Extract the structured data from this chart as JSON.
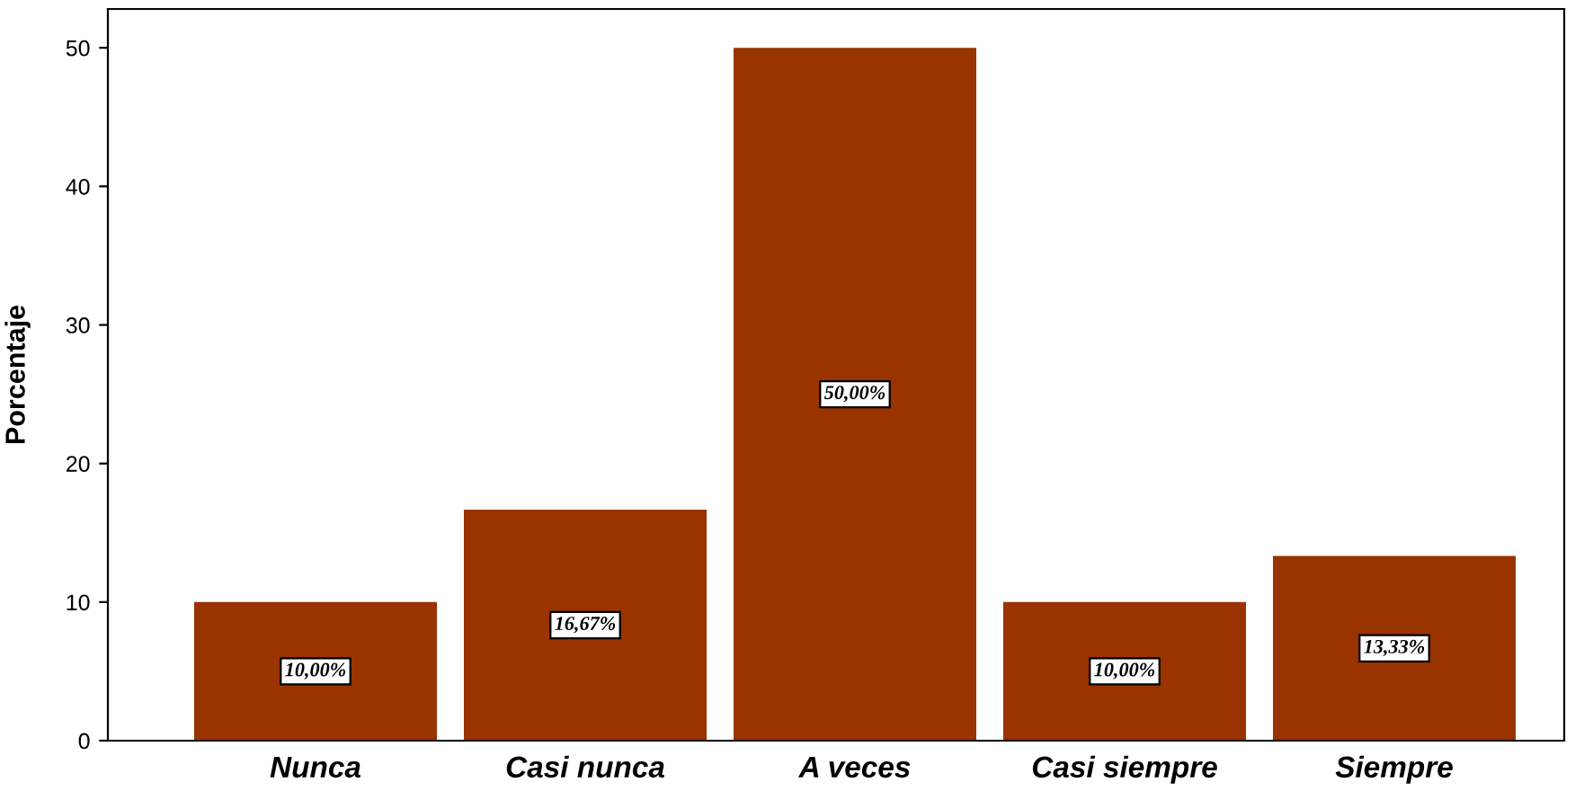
{
  "chart_data": {
    "type": "bar",
    "ylabel": "Porcentaje",
    "categories": [
      "Nunca",
      "Casi nunca",
      "A veces",
      "Casi siempre",
      "Siempre"
    ],
    "values": [
      10,
      16.67,
      50,
      10,
      13.33
    ],
    "value_labels": [
      "10,00%",
      "16,67%",
      "50,00%",
      "10,00%",
      "13,33%"
    ],
    "color": "#993300",
    "ylim": [
      0,
      52.8
    ],
    "yticks": [
      0,
      10,
      20,
      30,
      40,
      50
    ],
    "grid": false,
    "legend": false
  }
}
